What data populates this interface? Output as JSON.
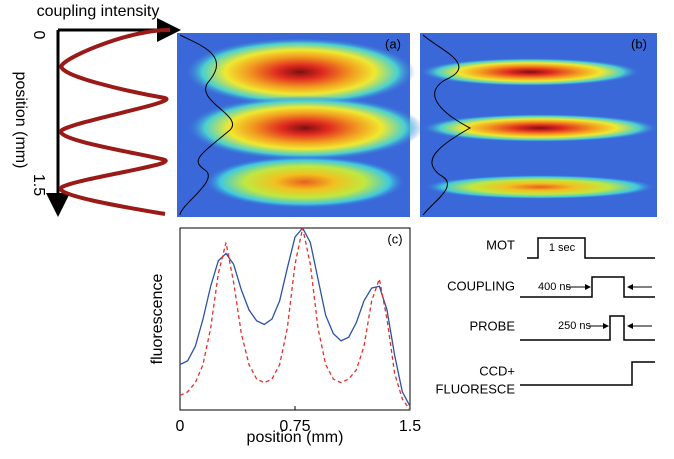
{
  "coupling_panel": {
    "title": "coupling intensity",
    "axis_label": "position (mm)",
    "ticks": [
      "0",
      "1.5"
    ]
  },
  "images": [
    {
      "label": "(a)"
    },
    {
      "label": "(b)"
    }
  ],
  "chart_data": {
    "type": "line",
    "label": "(c)",
    "xlabel": "position (mm)",
    "ylabel": "fluorescence",
    "xlim": [
      0,
      1.5
    ],
    "xticks": [
      0,
      0.75,
      1.5
    ],
    "ylim": [
      0,
      1
    ],
    "x": [
      0,
      0.05,
      0.1,
      0.15,
      0.2,
      0.25,
      0.3,
      0.35,
      0.4,
      0.45,
      0.5,
      0.55,
      0.6,
      0.65,
      0.7,
      0.75,
      0.8,
      0.85,
      0.9,
      0.95,
      1.0,
      1.05,
      1.1,
      1.15,
      1.2,
      1.25,
      1.3,
      1.35,
      1.4,
      1.45,
      1.5
    ],
    "series": [
      {
        "color": "#2d52a3",
        "dashed": false,
        "values": [
          0.25,
          0.27,
          0.35,
          0.5,
          0.68,
          0.82,
          0.86,
          0.8,
          0.66,
          0.55,
          0.49,
          0.47,
          0.5,
          0.6,
          0.78,
          0.95,
          1.0,
          0.92,
          0.72,
          0.52,
          0.42,
          0.38,
          0.4,
          0.48,
          0.6,
          0.67,
          0.68,
          0.55,
          0.3,
          0.1,
          0.02
        ]
      },
      {
        "color": "#e0302a",
        "dashed": true,
        "values": [
          0.08,
          0.1,
          0.15,
          0.25,
          0.45,
          0.75,
          0.92,
          0.7,
          0.42,
          0.25,
          0.17,
          0.15,
          0.17,
          0.25,
          0.45,
          0.8,
          1.0,
          0.8,
          0.45,
          0.25,
          0.17,
          0.15,
          0.17,
          0.22,
          0.35,
          0.6,
          0.72,
          0.5,
          0.2,
          0.06,
          0.0
        ]
      }
    ]
  },
  "timing": {
    "rows": [
      {
        "label": "MOT",
        "duration": "1 sec"
      },
      {
        "label": "COUPLING",
        "duration": "400 ns"
      },
      {
        "label": "PROBE",
        "duration": "250 ns"
      },
      {
        "label": [
          "CCD+",
          "FLUORESCE"
        ]
      }
    ]
  }
}
